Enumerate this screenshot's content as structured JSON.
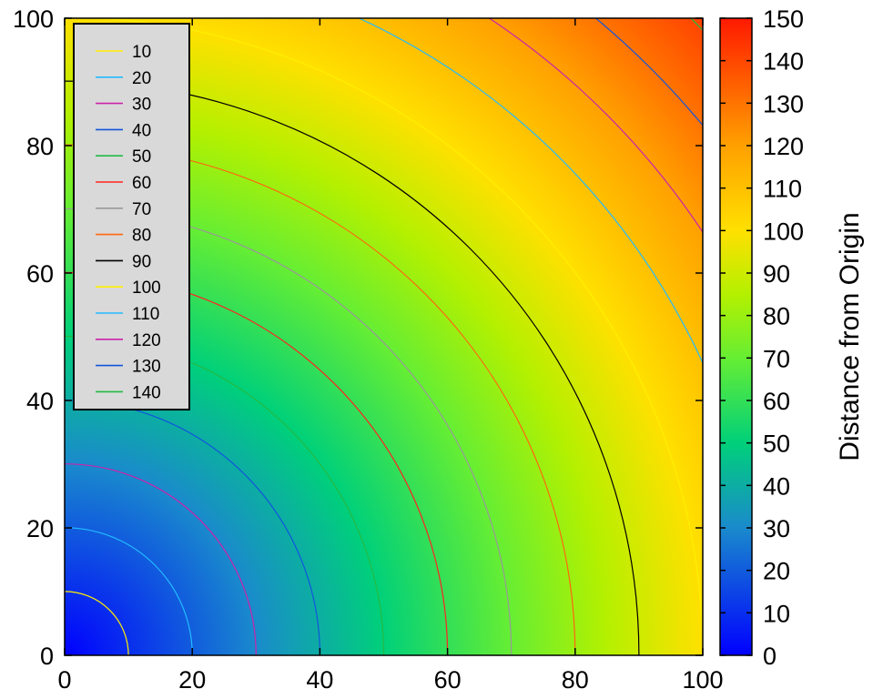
{
  "chart_data": {
    "type": "heatmap",
    "description_function": "sqrt(x^2 + y^2)",
    "xlim": [
      0,
      100
    ],
    "ylim": [
      0,
      100
    ],
    "x_ticks": [
      "0",
      "20",
      "40",
      "60",
      "80",
      "100"
    ],
    "y_ticks": [
      "0",
      "20",
      "40",
      "60",
      "80",
      "100"
    ],
    "x_tick_values": [
      0,
      20,
      40,
      60,
      80,
      100
    ],
    "y_tick_values": [
      0,
      20,
      40,
      60,
      80,
      100
    ],
    "colorbar": {
      "label": "Distance from Origin",
      "range": [
        0,
        150
      ],
      "ticks": [
        "0",
        "10",
        "20",
        "30",
        "40",
        "50",
        "60",
        "70",
        "80",
        "90",
        "100",
        "110",
        "120",
        "130",
        "140",
        "150"
      ],
      "tick_values": [
        0,
        10,
        20,
        30,
        40,
        50,
        60,
        70,
        80,
        90,
        100,
        110,
        120,
        130,
        140,
        150
      ],
      "colormap": "jet-like",
      "color_stops": [
        {
          "v": 0,
          "color": "#0000ff"
        },
        {
          "v": 30,
          "color": "#1a8acc"
        },
        {
          "v": 50,
          "color": "#00d07a"
        },
        {
          "v": 70,
          "color": "#66ee33"
        },
        {
          "v": 85,
          "color": "#b4f000"
        },
        {
          "v": 100,
          "color": "#ffe000"
        },
        {
          "v": 120,
          "color": "#ffa000"
        },
        {
          "v": 150,
          "color": "#ff1a00"
        }
      ]
    },
    "contours": [
      {
        "level": 10,
        "label": "10",
        "color": "#ffee00"
      },
      {
        "level": 20,
        "label": "20",
        "color": "#22bbff"
      },
      {
        "level": 30,
        "label": "30",
        "color": "#cc22aa"
      },
      {
        "level": 40,
        "label": "40",
        "color": "#1155dd"
      },
      {
        "level": 50,
        "label": "50",
        "color": "#22bb44"
      },
      {
        "level": 60,
        "label": "60",
        "color": "#ff2222"
      },
      {
        "level": 70,
        "label": "70",
        "color": "#999999"
      },
      {
        "level": 80,
        "label": "80",
        "color": "#ff6611"
      },
      {
        "level": 90,
        "label": "90",
        "color": "#000000"
      },
      {
        "level": 100,
        "label": "100",
        "color": "#ffee00"
      },
      {
        "level": 110,
        "label": "110",
        "color": "#22bbff"
      },
      {
        "level": 120,
        "label": "120",
        "color": "#cc22aa"
      },
      {
        "level": 130,
        "label": "130",
        "color": "#1155dd"
      },
      {
        "level": 140,
        "label": "140",
        "color": "#22bb44"
      }
    ],
    "legend_position": "top-left"
  }
}
